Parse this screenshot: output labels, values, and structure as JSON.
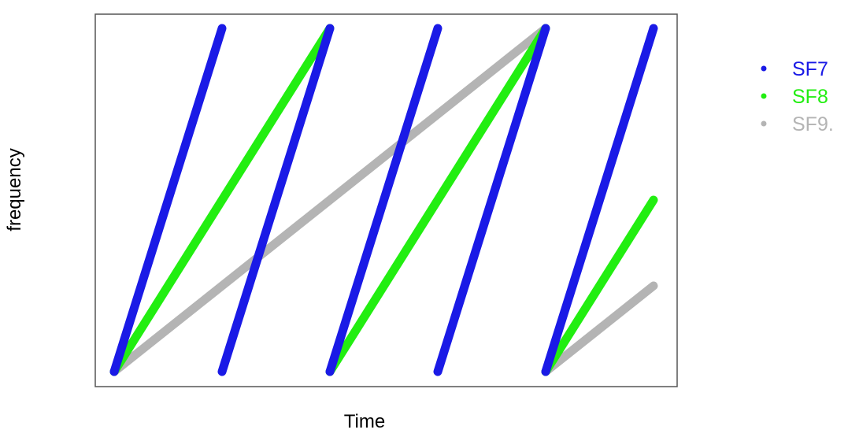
{
  "chart_data": {
    "type": "line",
    "title": "",
    "xlabel": "Time",
    "ylabel": "frequency",
    "xlim": [
      0,
      1
    ],
    "ylim": [
      0,
      1
    ],
    "grid": false,
    "legend_position": "right",
    "series": [
      {
        "name": "SF7",
        "color": "#1a1ae6",
        "segments": [
          [
            [
              0.0,
              0.0
            ],
            [
              0.2,
              1.0
            ]
          ],
          [
            [
              0.2,
              0.0
            ],
            [
              0.4,
              1.0
            ]
          ],
          [
            [
              0.4,
              0.0
            ],
            [
              0.6,
              1.0
            ]
          ],
          [
            [
              0.6,
              0.0
            ],
            [
              0.8,
              1.0
            ]
          ],
          [
            [
              0.8,
              0.0
            ],
            [
              1.0,
              1.0
            ]
          ]
        ]
      },
      {
        "name": "SF8",
        "color": "#22ee11",
        "segments": [
          [
            [
              0.0,
              0.0
            ],
            [
              0.4,
              1.0
            ]
          ],
          [
            [
              0.4,
              0.0
            ],
            [
              0.8,
              1.0
            ]
          ],
          [
            [
              0.8,
              0.0
            ],
            [
              1.0,
              0.5
            ]
          ]
        ]
      },
      {
        "name": "SF9.",
        "color": "#b4b4b4",
        "segments": [
          [
            [
              0.0,
              0.0
            ],
            [
              0.8,
              1.0
            ]
          ],
          [
            [
              0.8,
              0.0
            ],
            [
              1.0,
              0.25
            ]
          ]
        ]
      }
    ],
    "legend": [
      {
        "label": "SF7",
        "color": "#1a1ae6"
      },
      {
        "label": "SF8",
        "color": "#22ee11"
      },
      {
        "label": "SF9.",
        "color": "#b4b4b4"
      }
    ]
  }
}
